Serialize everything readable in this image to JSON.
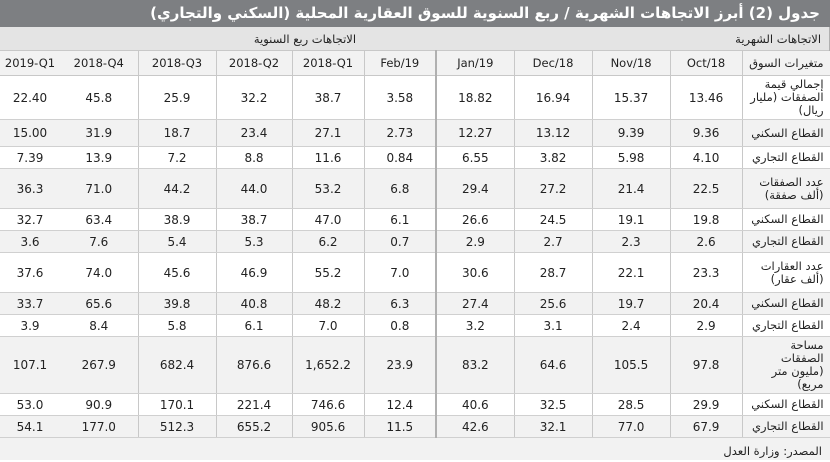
{
  "title": "جدول (2) أبرز الاتجاهات الشهرية / ربع السنوية للسوق العقارية المحلية (السكني والتجاري)",
  "quarterly_header": "الاتجاهات ربع السنوية",
  "monthly_header": "الاتجاهات الشهرية",
  "label_header": "متغيرات السوق",
  "quarter_cols": [
    "2019-Q1",
    "2018-Q4",
    "2018-Q3",
    "2018-Q2",
    "2018-Q1"
  ],
  "month_cols": [
    "Feb/19",
    "Jan/19",
    "Dec/18",
    "Nov/18",
    "Oct/18"
  ],
  "rows": [
    {
      "label": "إجمالي قيمة الصفقات (مليار ريال)",
      "q": [
        "22.40",
        "45.8",
        "25.9",
        "32.2",
        "38.7"
      ],
      "m": [
        "3.58",
        "18.82",
        "16.94",
        "15.37",
        "13.46"
      ]
    },
    {
      "label": "القطاع السكني",
      "q": [
        "15.00",
        "31.9",
        "18.7",
        "23.4",
        "27.1"
      ],
      "m": [
        "2.73",
        "12.27",
        "13.12",
        "9.39",
        "9.36"
      ]
    },
    {
      "label": "القطاع التجاري",
      "q": [
        "7.39",
        "13.9",
        "7.2",
        "8.8",
        "11.6"
      ],
      "m": [
        "0.84",
        "6.55",
        "3.82",
        "5.98",
        "4.10"
      ]
    },
    {
      "label": "عدد الصفقات (ألف صفقة)",
      "q": [
        "36.3",
        "71.0",
        "44.2",
        "44.0",
        "53.2"
      ],
      "m": [
        "6.8",
        "29.4",
        "27.2",
        "21.4",
        "22.5"
      ]
    },
    {
      "label": "القطاع السكني",
      "q": [
        "32.7",
        "63.4",
        "38.9",
        "38.7",
        "47.0"
      ],
      "m": [
        "6.1",
        "26.6",
        "24.5",
        "19.1",
        "19.8"
      ]
    },
    {
      "label": "القطاع التجاري",
      "q": [
        "3.6",
        "7.6",
        "5.4",
        "5.3",
        "6.2"
      ],
      "m": [
        "0.7",
        "2.9",
        "2.7",
        "2.3",
        "2.6"
      ]
    },
    {
      "label": "عدد العقارات (ألف عقار)",
      "q": [
        "37.6",
        "74.0",
        "45.6",
        "46.9",
        "55.2"
      ],
      "m": [
        "7.0",
        "30.6",
        "28.7",
        "22.1",
        "23.3"
      ]
    },
    {
      "label": "القطاع السكني",
      "q": [
        "33.7",
        "65.6",
        "39.8",
        "40.8",
        "48.2"
      ],
      "m": [
        "6.3",
        "27.4",
        "25.6",
        "19.7",
        "20.4"
      ]
    },
    {
      "label": "القطاع التجاري",
      "q": [
        "3.9",
        "8.4",
        "5.8",
        "6.1",
        "7.0"
      ],
      "m": [
        "0.8",
        "3.2",
        "3.1",
        "2.4",
        "2.9"
      ]
    },
    {
      "label": "مساحة الصفقات (مليون متر مربع)",
      "q": [
        "107.1",
        "267.9",
        "682.4",
        "876.6",
        "1,652.2"
      ],
      "m": [
        "23.9",
        "83.2",
        "64.6",
        "105.5",
        "97.8"
      ]
    },
    {
      "label": "القطاع السكني",
      "q": [
        "53.0",
        "90.9",
        "170.1",
        "221.4",
        "746.6"
      ],
      "m": [
        "12.4",
        "40.6",
        "32.5",
        "28.5",
        "29.9"
      ]
    },
    {
      "label": "القطاع التجاري",
      "q": [
        "54.1",
        "177.0",
        "512.3",
        "655.2",
        "905.6"
      ],
      "m": [
        "11.5",
        "42.6",
        "32.1",
        "77.0",
        "67.9"
      ]
    }
  ],
  "source": "المصدر: وزارة العدل"
}
